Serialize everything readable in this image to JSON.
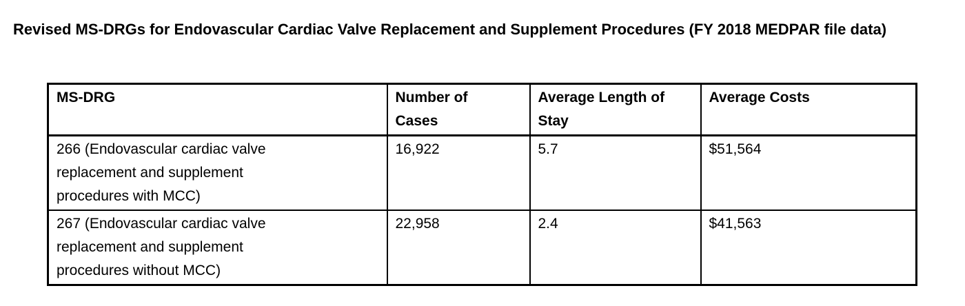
{
  "title": "Revised MS-DRGs for Endovascular Cardiac Valve Replacement and Supplement Procedures (FY 2018 MEDPAR file data)",
  "table": {
    "columns": [
      "MS-DRG",
      "Number of\nCases",
      "Average Length of\nStay",
      "Average Costs"
    ],
    "rows": [
      {
        "ms_drg": "266 (Endovascular cardiac valve\nreplacement and supplement\nprocedures with MCC)",
        "number_of_cases": "16,922",
        "average_length_of_stay": "5.7",
        "average_costs": "$51,564"
      },
      {
        "ms_drg": "267 (Endovascular cardiac valve\nreplacement and supplement\nprocedures without MCC)",
        "number_of_cases": "22,958",
        "average_length_of_stay": "2.4",
        "average_costs": "$41,563"
      }
    ]
  },
  "colors": {
    "text": "#000000",
    "border": "#000000",
    "background": "#ffffff"
  }
}
